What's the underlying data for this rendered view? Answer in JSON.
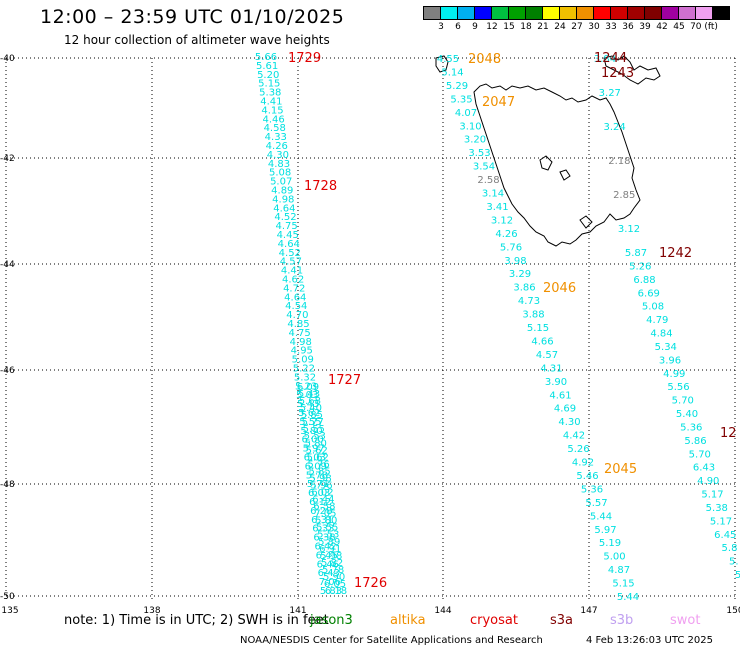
{
  "title": "12:00 – 23:59 UTC 01/10/2025",
  "subtitle": "12 hour collection of altimeter wave heights",
  "legend": {
    "colors": [
      "#808080",
      "#00f0f0",
      "#00b0f0",
      "#0000ff",
      "#00c040",
      "#00a000",
      "#008000",
      "#ffff00",
      "#f0c000",
      "#f09000",
      "#ff0000",
      "#d00000",
      "#a00000",
      "#800000",
      "#a000a0",
      "#d070d0",
      "#f0a0f0",
      "#000000"
    ],
    "labels": [
      "3",
      "6",
      "9",
      "12",
      "15",
      "18",
      "21",
      "24",
      "27",
      "30",
      "33",
      "36",
      "39",
      "42",
      "45",
      "70 (ft)"
    ]
  },
  "axes": {
    "lat_labels": [
      "-40",
      "-42",
      "-44",
      "-46",
      "-48",
      "-50"
    ],
    "lon_labels": [
      "135",
      "138",
      "141",
      "144",
      "147",
      "150"
    ]
  },
  "tracks": {
    "left": {
      "values_a": [
        "5.66",
        "5.61",
        "5.20",
        "5.15",
        "5.38",
        "4.41",
        "4.15",
        "4.46",
        "4.58",
        "4.33",
        "4.26",
        "4.30",
        "4.83",
        "5.08",
        "5.07",
        "4.89",
        "4.98",
        "4.64",
        "4.52",
        "4.75",
        "4.45",
        "4.64",
        "4.52",
        "4.57",
        "4.41",
        "4.62",
        "4.72",
        "4.64",
        "4.54",
        "4.70",
        "4.85",
        "4.75",
        "4.98",
        "4.95",
        "5.09",
        "5.22",
        "5.32",
        "5.23",
        "5.03",
        "5.43",
        "5.62",
        "5.55",
        "5.80",
        "6.00",
        "5.97",
        "6.03",
        "6.09",
        "5.78",
        "5.71",
        "6.03",
        "6.12",
        "6.28",
        "6.31",
        "6.33",
        "6.38",
        "6.42",
        "6.45",
        "6.46",
        "6.43",
        "7.06",
        "5.83"
      ],
      "values_b": [
        "6.09",
        "5.43",
        "5.68",
        "5.40",
        "5.85",
        "5.77",
        "5.55",
        "5.53",
        "5.80",
        "5.62",
        "5.62",
        "5.76",
        "5.85",
        "5.98",
        "5.96",
        "6.02",
        "6.44",
        "6.58",
        "7.05",
        "5.80",
        "5.55",
        "5.53",
        "5.89",
        "6.91",
        "5.98",
        "5.82",
        "5.78",
        "5.90",
        "6.05",
        "6.18"
      ]
    },
    "middle": [
      "4.55",
      "5.14",
      "5.29",
      "5.35",
      "4.07",
      "3.10",
      "3.20",
      "3.53",
      "3.54",
      "2.58",
      "3.14",
      "3.41",
      "3.12",
      "4.26",
      "5.76",
      "3.98",
      "3.29",
      "3.86",
      "4.73",
      "3.88",
      "5.15",
      "4.66",
      "4.57",
      "4.31",
      "3.90",
      "4.61",
      "4.69",
      "4.30",
      "4.42",
      "5.26",
      "4.92",
      "5.46",
      "5.36",
      "5.57",
      "5.44",
      "5.97",
      "5.19",
      "5.00",
      "4.87",
      "5.15",
      "5.44"
    ],
    "right_top": [
      "3.84",
      "3.27",
      "3.24",
      "2.18",
      "2.85",
      "3.12"
    ],
    "right": [
      "5.87",
      "5.26",
      "6.88",
      "6.69",
      "5.08",
      "4.79",
      "4.84",
      "5.34",
      "3.96",
      "4.99",
      "5.56",
      "5.70",
      "5.40",
      "5.36",
      "5.86",
      "5.70",
      "6.43",
      "4.90",
      "5.17",
      "5.38",
      "5.17",
      "6.45",
      "5.8",
      "5.",
      "5"
    ]
  },
  "time_labels": [
    {
      "text": "1729",
      "color": "#e00000"
    },
    {
      "text": "1728",
      "color": "#e00000"
    },
    {
      "text": "1727",
      "color": "#e00000"
    },
    {
      "text": "1726",
      "color": "#e00000"
    },
    {
      "text": "2048",
      "color": "#f09000"
    },
    {
      "text": "2047",
      "color": "#f09000"
    },
    {
      "text": "2046",
      "color": "#f09000"
    },
    {
      "text": "2045",
      "color": "#f09000"
    },
    {
      "text": "1244",
      "color": "#800000"
    },
    {
      "text": "1243",
      "color": "#800000"
    },
    {
      "text": "1242",
      "color": "#800000"
    },
    {
      "text": "12",
      "color": "#800000"
    }
  ],
  "note": "note: 1) Time is in UTC; 2) SWH is in feet",
  "satellites": [
    {
      "name": "jason3",
      "color": "#008000"
    },
    {
      "name": "altika",
      "color": "#f09000"
    },
    {
      "name": "cryosat",
      "color": "#e00000"
    },
    {
      "name": "s3a",
      "color": "#800000"
    },
    {
      "name": "s3b",
      "color": "#c0a0f0"
    },
    {
      "name": "swot",
      "color": "#f0a0f0"
    }
  ],
  "credit": "NOAA/NESDIS Center for Satellite Applications and Research",
  "timestamp": "4 Feb 13:26:03 UTC 2025",
  "colors": {
    "track": "#00e0e0",
    "grid": "#000000",
    "coast": "#000000"
  }
}
